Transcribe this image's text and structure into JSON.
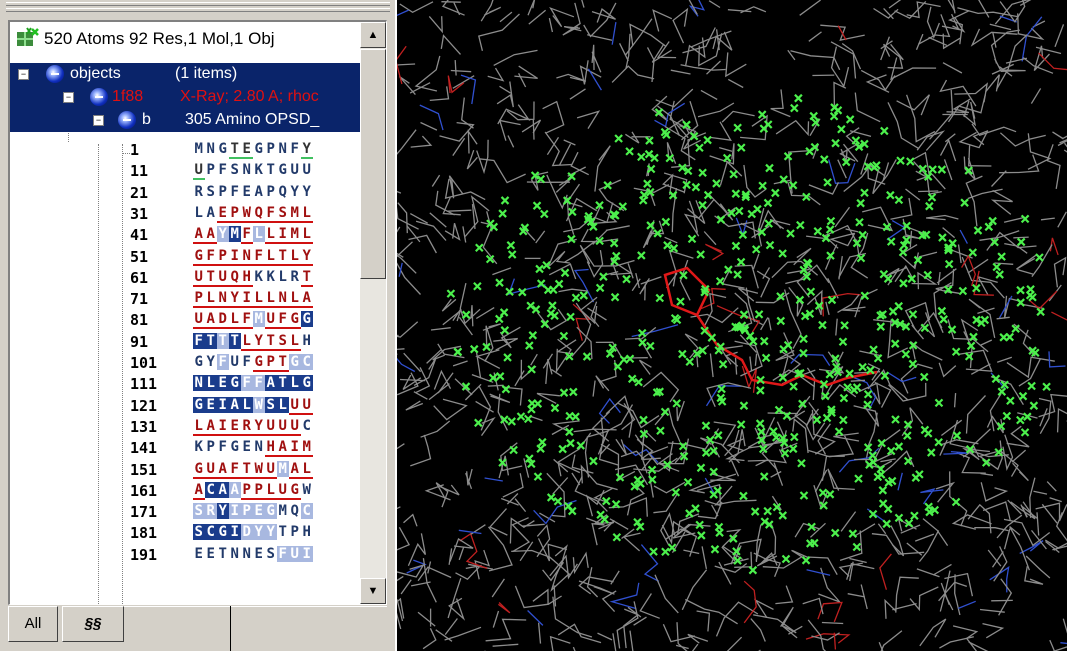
{
  "header": {
    "summary": "520 Atoms 92 Res,1 Mol,1 Obj"
  },
  "tree": {
    "objects": {
      "label": "objects",
      "count": "(1 items)"
    },
    "structure": {
      "label": "1f88",
      "desc": "X-Ray; 2.80 A;  rhoc"
    },
    "chain": {
      "label": "b",
      "desc": "305 Amino OPSD_"
    }
  },
  "residues": [
    {
      "num": "1",
      "seq": "MNGTEGPNFY",
      "style": "0005500005"
    },
    {
      "num": "11",
      "seq": "UPFSNKTGUU",
      "style": "5000000000"
    },
    {
      "num": "21",
      "seq": "RSPFEAPQYY",
      "style": "0000000000"
    },
    {
      "num": "31",
      "seq": "LAEPWQFSML",
      "style": "0011111111"
    },
    {
      "num": "41",
      "seq": "AAYMFLLIML",
      "style": "1132131111"
    },
    {
      "num": "51",
      "seq": "GFPINFLTLY",
      "style": "1111111111"
    },
    {
      "num": "61",
      "seq": "UTUQHKKLRT",
      "style": "1111100001"
    },
    {
      "num": "71",
      "seq": "PLNYILLNLA",
      "style": "1111111111"
    },
    {
      "num": "81",
      "seq": "UADLFMUFGG",
      "style": "1111131112"
    },
    {
      "num": "91",
      "seq": "FTTTLYTSLH",
      "style": "2232111110"
    },
    {
      "num": "101",
      "seq": "GYFUFGPTGC",
      "style": "0030011133"
    },
    {
      "num": "111",
      "seq": "NLEGFFATLG",
      "style": "2222332222"
    },
    {
      "num": "121",
      "seq": "GEIALWSLUU",
      "style": "2222232211"
    },
    {
      "num": "131",
      "seq": "LAIERYUUUC",
      "style": "1111111110"
    },
    {
      "num": "141",
      "seq": "KPFGENHAIM",
      "style": "0000001111"
    },
    {
      "num": "151",
      "seq": "GUAFTWUMAL",
      "style": "1111111311"
    },
    {
      "num": "161",
      "seq": "ACAAPPLUGW",
      "style": "1223111110"
    },
    {
      "num": "171",
      "seq": "SRYIPEGMQC",
      "style": "3323333003"
    },
    {
      "num": "181",
      "seq": "SCGIDYYTPH",
      "style": "2222333000"
    },
    {
      "num": "191",
      "seq": "EETNNESFUI",
      "style": "0000000333"
    }
  ],
  "scroll": {
    "up": "▲",
    "down": "▼"
  },
  "tabs": [
    {
      "label": "All"
    },
    {
      "label": "§§"
    }
  ],
  "colors": {
    "selection": "#0a246a",
    "red_text": "#e01010",
    "viewer_bg": "#000000",
    "marker": "#4cf04c"
  },
  "icons": {
    "header": "molecule-check-icon",
    "node": "blue-ball-icon"
  }
}
